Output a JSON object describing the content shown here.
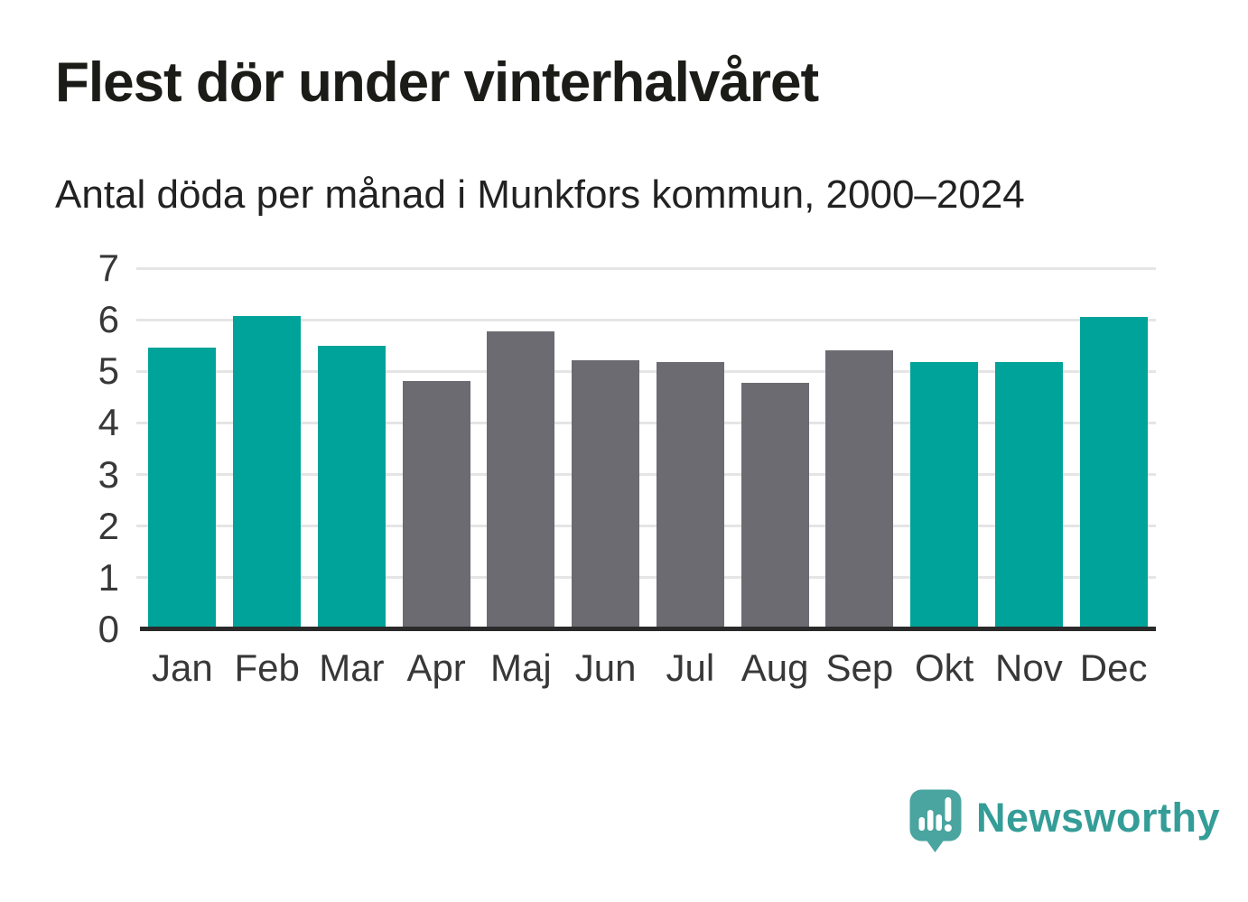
{
  "header": {
    "title": "Flest dör under vinterhalvåret",
    "subtitle": "Antal döda per månad i Munkfors kommun, 2000–2024"
  },
  "chart_data": {
    "type": "bar",
    "title": "Flest dör under vinterhalvåret",
    "subtitle": "Antal döda per månad i Munkfors kommun, 2000–2024",
    "categories": [
      "Jan",
      "Feb",
      "Mar",
      "Apr",
      "Maj",
      "Jun",
      "Jul",
      "Aug",
      "Sep",
      "Okt",
      "Nov",
      "Dec"
    ],
    "values": [
      5.46,
      6.08,
      5.49,
      4.81,
      5.78,
      5.22,
      5.18,
      4.77,
      5.4,
      5.18,
      5.18,
      6.05
    ],
    "bar_colors": [
      "teal",
      "teal",
      "teal",
      "gray",
      "gray",
      "gray",
      "gray",
      "gray",
      "gray",
      "teal",
      "teal",
      "teal"
    ],
    "colors": {
      "teal": "#00a399",
      "gray": "#6c6b72"
    },
    "xlabel": "",
    "ylabel": "",
    "ylim": [
      0,
      7
    ],
    "yticks": [
      0,
      1,
      2,
      3,
      4,
      5,
      6,
      7
    ],
    "grid": true,
    "gridline_color": "#e5e5e5",
    "axis_line_color": "#2a2a2a",
    "tick_label_color": "#383838",
    "legend": false
  },
  "footer": {
    "brand": "Newsworthy",
    "brand_color": "#349d97",
    "logo_icon": "newsworthy-speech-bubble-chart-icon",
    "logo_bubble_color": "#4aa49f",
    "logo_mark_color": "#ffffff"
  }
}
